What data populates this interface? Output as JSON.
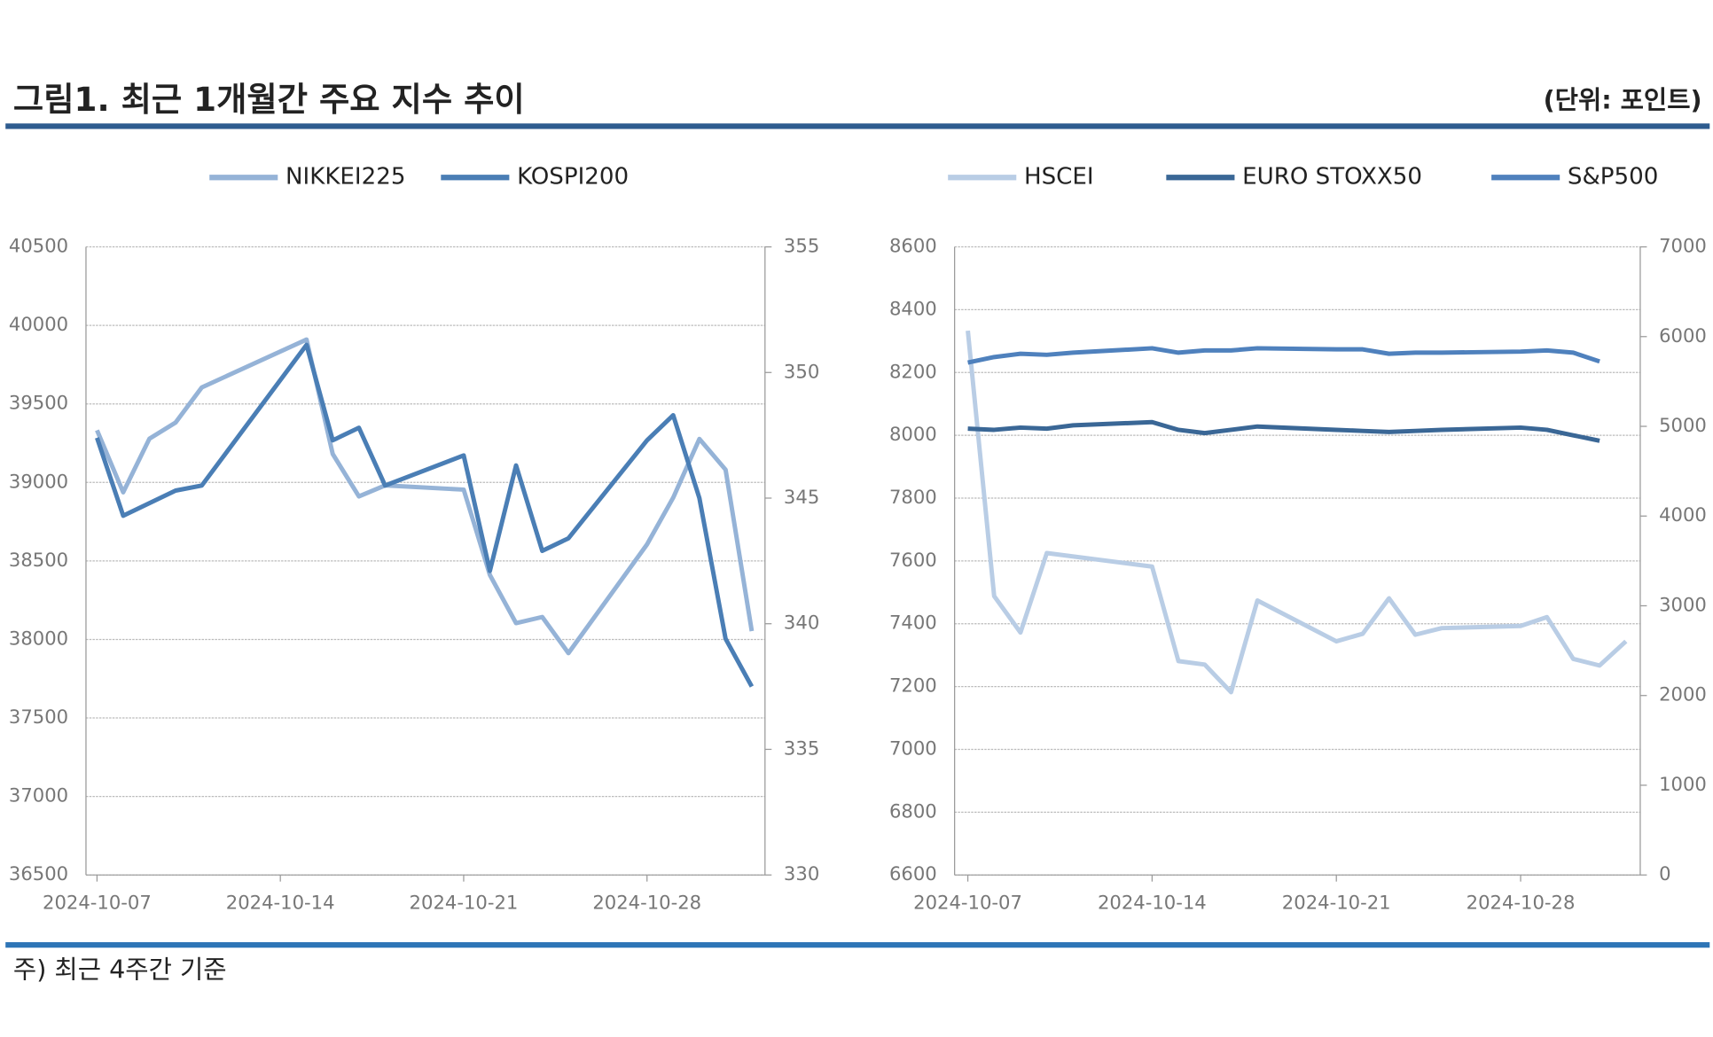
{
  "header": {
    "title": "그림1. 최근 1개월간 주요 지수 추이",
    "unit": "(단위: 포인트)"
  },
  "footnote": "주) 최근 4주간 기준",
  "chart_data": [
    {
      "type": "line",
      "xlim": [
        "2024-10-07",
        "2024-11-01"
      ],
      "xticks": [
        "2024-10-07",
        "2024-10-14",
        "2024-10-21",
        "2024-10-28"
      ],
      "ylim": [
        36500,
        40500
      ],
      "yticks": [
        36500,
        37000,
        37500,
        38000,
        38500,
        39000,
        39500,
        40000,
        40500
      ],
      "y2lim": [
        330,
        355
      ],
      "y2ticks": [
        330,
        335,
        340,
        345,
        350,
        355
      ],
      "grid": true,
      "series": [
        {
          "name": "NIKKEI225",
          "color": "#95b3d7",
          "axis": "y",
          "x": [
            "2024-10-07",
            "2024-10-08",
            "2024-10-09",
            "2024-10-10",
            "2024-10-11",
            "2024-10-15",
            "2024-10-16",
            "2024-10-17",
            "2024-10-18",
            "2024-10-21",
            "2024-10-22",
            "2024-10-23",
            "2024-10-24",
            "2024-10-25",
            "2024-10-28",
            "2024-10-29",
            "2024-10-30",
            "2024-10-31",
            "2024-11-01"
          ],
          "values": [
            39332,
            38937,
            39278,
            39381,
            39605,
            39910,
            39181,
            38911,
            38981,
            38954,
            38411,
            38104,
            38143,
            37913,
            38605,
            38903,
            39277,
            39081,
            38053
          ]
        },
        {
          "name": "KOSPI200",
          "color": "#4a7eb5",
          "axis": "y2",
          "x": [
            "2024-10-07",
            "2024-10-08",
            "2024-10-10",
            "2024-10-11",
            "2024-10-15",
            "2024-10-16",
            "2024-10-17",
            "2024-10-18",
            "2024-10-21",
            "2024-10-22",
            "2024-10-23",
            "2024-10-24",
            "2024-10-25",
            "2024-10-28",
            "2024-10-29",
            "2024-10-30",
            "2024-10-31",
            "2024-11-01"
          ],
          "values": [
            347.4,
            344.3,
            345.3,
            345.5,
            351.1,
            347.3,
            347.8,
            345.5,
            346.7,
            342.1,
            346.3,
            342.9,
            343.4,
            347.3,
            348.3,
            345.0,
            339.4,
            337.5
          ]
        }
      ]
    },
    {
      "type": "line",
      "xlim": [
        "2024-10-07",
        "2024-11-01"
      ],
      "xticks": [
        "2024-10-07",
        "2024-10-14",
        "2024-10-21",
        "2024-10-28"
      ],
      "ylim": [
        6600,
        8600
      ],
      "yticks": [
        6600,
        6800,
        7000,
        7200,
        7400,
        7600,
        7800,
        8000,
        8200,
        8400,
        8600
      ],
      "y2lim": [
        0,
        7000
      ],
      "y2ticks": [
        0,
        1000,
        2000,
        3000,
        4000,
        5000,
        6000,
        7000
      ],
      "grid": true,
      "series": [
        {
          "name": "HSCEI",
          "color": "#b9cde5",
          "axis": "y",
          "x": [
            "2024-10-07",
            "2024-10-08",
            "2024-10-09",
            "2024-10-10",
            "2024-10-14",
            "2024-10-15",
            "2024-10-16",
            "2024-10-17",
            "2024-10-18",
            "2024-10-21",
            "2024-10-22",
            "2024-10-23",
            "2024-10-24",
            "2024-10-25",
            "2024-10-28",
            "2024-10-29",
            "2024-10-30",
            "2024-10-31",
            "2024-11-01"
          ],
          "values": [
            8333,
            7488,
            7372,
            7625,
            7582,
            7281,
            7270,
            7182,
            7474,
            7344,
            7368,
            7481,
            7365,
            7386,
            7393,
            7421,
            7288,
            7267,
            7344
          ]
        },
        {
          "name": "EURO STOXX50",
          "color": "#3a6796",
          "axis": "y2",
          "x": [
            "2024-10-07",
            "2024-10-08",
            "2024-10-09",
            "2024-10-10",
            "2024-10-11",
            "2024-10-14",
            "2024-10-15",
            "2024-10-16",
            "2024-10-17",
            "2024-10-18",
            "2024-10-21",
            "2024-10-22",
            "2024-10-23",
            "2024-10-24",
            "2024-10-25",
            "2024-10-28",
            "2024-10-29",
            "2024-10-30",
            "2024-10-31"
          ],
          "values": [
            4974,
            4961,
            4986,
            4974,
            5011,
            5047,
            4961,
            4925,
            4961,
            4998,
            4961,
            4949,
            4937,
            4949,
            4961,
            4986,
            4961,
            4900,
            4839
          ]
        },
        {
          "name": "S&P500",
          "color": "#4f81bd",
          "axis": "y2",
          "x": [
            "2024-10-07",
            "2024-10-08",
            "2024-10-09",
            "2024-10-10",
            "2024-10-11",
            "2024-10-14",
            "2024-10-15",
            "2024-10-16",
            "2024-10-17",
            "2024-10-18",
            "2024-10-21",
            "2024-10-22",
            "2024-10-23",
            "2024-10-24",
            "2024-10-25",
            "2024-10-28",
            "2024-10-29",
            "2024-10-30",
            "2024-10-31"
          ],
          "values": [
            5711,
            5772,
            5809,
            5797,
            5821,
            5870,
            5821,
            5846,
            5846,
            5870,
            5858,
            5858,
            5809,
            5821,
            5821,
            5833,
            5846,
            5821,
            5723
          ]
        }
      ]
    }
  ]
}
